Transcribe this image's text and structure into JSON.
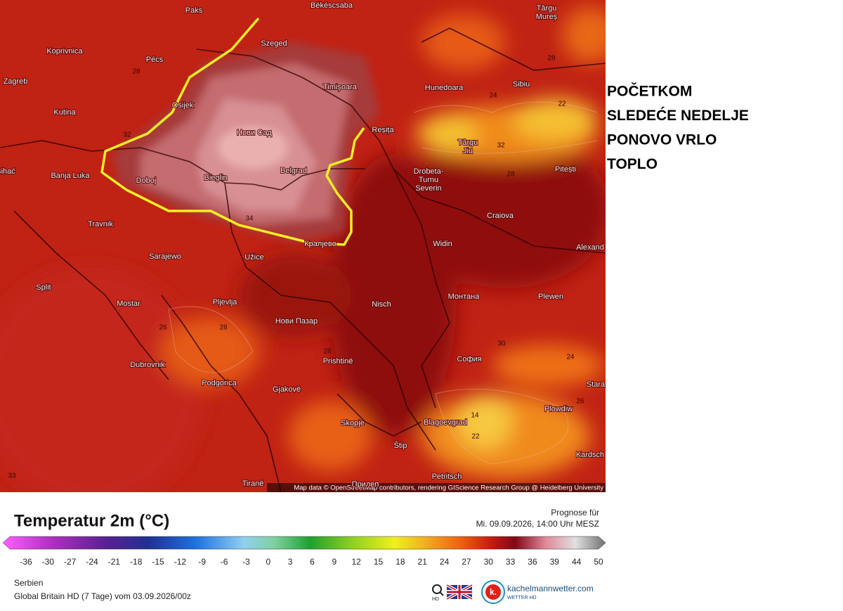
{
  "map": {
    "cities": [
      [
        "Paks"
      ],
      [
        "Békéscsaba"
      ],
      [
        "Târgu",
        "Mureș"
      ],
      [
        "Koprivnica"
      ],
      [
        "Pécs"
      ],
      [
        "Szeged"
      ],
      [
        "Zagreb"
      ],
      [
        "Timișoara"
      ],
      [
        "Hunedoara"
      ],
      [
        "Sibiu"
      ],
      [
        "Kutina"
      ],
      [
        "Osijek"
      ],
      [
        "Нови Сад"
      ],
      [
        "Reșița"
      ],
      [
        "Târgu",
        "Jiu"
      ],
      [
        "Pitești"
      ],
      [
        "Bihać"
      ],
      [
        "Banja Luka"
      ],
      [
        "Doboj"
      ],
      [
        "Bieglin"
      ],
      [
        "Belgrad"
      ],
      [
        "Drobeta-",
        "Turnu",
        "Severin"
      ],
      [
        "Craiova"
      ],
      [
        "Travnik"
      ],
      [
        "Кралјево"
      ],
      [
        "Widin"
      ],
      [
        "Alexand"
      ],
      [
        "Sarajewo"
      ],
      [
        "Užice"
      ],
      [
        "Split"
      ],
      [
        "Монтана"
      ],
      [
        "Plewen"
      ],
      [
        "Mostar"
      ],
      [
        "Pljevlja"
      ],
      [
        "Nisch"
      ],
      [
        "Нови Пазар"
      ],
      [
        "Dubrovnik"
      ],
      [
        "Prishtinë"
      ],
      [
        "София"
      ],
      [
        "Stara"
      ],
      [
        "Podgorica"
      ],
      [
        "Gjakovë"
      ],
      [
        "Plowdiw"
      ],
      [
        "Skopje"
      ],
      [
        "Blagoevgrad"
      ],
      [
        "Štip"
      ],
      [
        "Kardsch"
      ],
      [
        "Petritsch"
      ],
      [
        "Tiranë"
      ],
      [
        "Прилеп"
      ]
    ],
    "contour_labels": [
      28,
      32,
      34,
      28,
      24,
      22,
      32,
      28,
      26,
      28,
      28,
      30,
      24,
      26,
      22,
      14,
      33
    ],
    "attribution": "Map data © OpenStreetMap contributors, rendering GIScience Research Group @ Heidelberg University"
  },
  "annotation": {
    "lines": [
      "POČETKOM",
      "SLEDEĆE NEDELJE",
      "PONOVO VRLO",
      "TOPLO"
    ]
  },
  "legend": {
    "title": "Temperatur 2m (°C)",
    "forecast_label": "Prognose für",
    "forecast_time": "Mi. 09.09.2026, 14:00 Uhr MESZ",
    "ticks": [
      -36,
      -30,
      -27,
      -24,
      -21,
      -18,
      -15,
      -12,
      -9,
      -6,
      -3,
      0,
      3,
      6,
      9,
      12,
      15,
      18,
      21,
      24,
      27,
      30,
      33,
      36,
      39,
      44,
      50
    ]
  },
  "footer": {
    "region": "Serbien",
    "model": "Global Britain HD (7 Tage) vom 03.09.2026/00z",
    "search_label": "HD",
    "brand": "kachelmannwetter.com",
    "brand_sub": "WETTER HD"
  }
}
